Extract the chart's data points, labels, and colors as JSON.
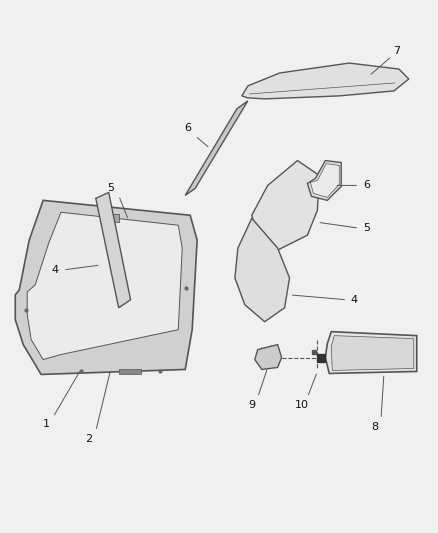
{
  "background_color": "#f0f0f0",
  "line_color": "#555555",
  "fill_light": "#e8e8e8",
  "fill_medium": "#d8d8d8",
  "fill_dark": "#c8c8c8",
  "label_fontsize": 8,
  "label_color": "#111111"
}
